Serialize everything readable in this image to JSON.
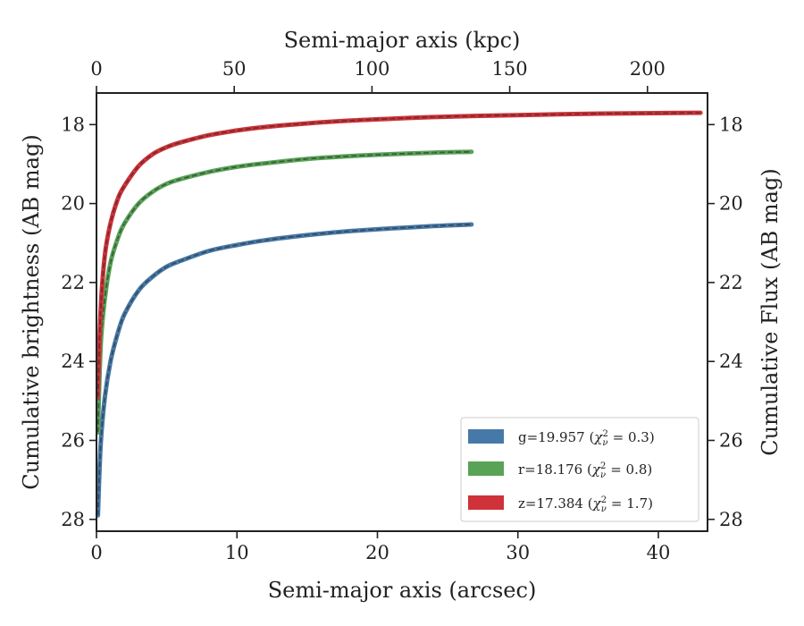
{
  "chart_data": {
    "type": "line",
    "title": "",
    "xlabel": "Semi-major axis (arcsec)",
    "x2label": "Semi-major axis (kpc)",
    "ylabel": "Cumulative brightness (AB mag)",
    "y2label": "Cumulative Flux (AB mag)",
    "xlim": [
      0,
      43.5
    ],
    "x2lim": [
      0,
      221.8
    ],
    "ylim": [
      28.3,
      17.2
    ],
    "y_inverted": true,
    "xticks": [
      0,
      10,
      20,
      30,
      40
    ],
    "xtick_labels": [
      "0",
      "10",
      "20",
      "30",
      "40"
    ],
    "x2ticks": [
      0,
      50,
      100,
      150,
      200
    ],
    "x2tick_labels": [
      "0",
      "50",
      "100",
      "150",
      "200"
    ],
    "yticks": [
      18,
      20,
      22,
      24,
      26,
      28
    ],
    "ytick_labels": [
      "18",
      "20",
      "22",
      "24",
      "26",
      "28"
    ],
    "grid": false,
    "legend_position": "lower-right",
    "series": [
      {
        "name": "g=19.957",
        "chi2": "0.3",
        "color": "#4679a8",
        "x": [
          0.1,
          0.3,
          0.6,
          1.0,
          1.5,
          2.0,
          3.0,
          4.0,
          5.0,
          6.0,
          8.0,
          10.0,
          12.0,
          15.0,
          18.0,
          21.0,
          24.0,
          26.7
        ],
        "y": [
          27.9,
          26.1,
          24.9,
          24.0,
          23.3,
          22.8,
          22.2,
          21.85,
          21.6,
          21.45,
          21.2,
          21.05,
          20.93,
          20.8,
          20.7,
          20.63,
          20.57,
          20.53
        ]
      },
      {
        "name": "r=18.176",
        "chi2": "0.8",
        "color": "#58a356",
        "x": [
          0.1,
          0.3,
          0.6,
          1.0,
          1.5,
          2.0,
          3.0,
          4.0,
          5.0,
          6.0,
          8.0,
          10.0,
          12.0,
          15.0,
          18.0,
          21.0,
          24.0,
          26.7
        ],
        "y": [
          25.8,
          23.6,
          22.4,
          21.5,
          20.9,
          20.5,
          20.0,
          19.7,
          19.5,
          19.38,
          19.2,
          19.07,
          18.98,
          18.87,
          18.8,
          18.75,
          18.71,
          18.69
        ]
      },
      {
        "name": "z=17.384",
        "chi2": "1.7",
        "color": "#cf3238",
        "x": [
          0.1,
          0.3,
          0.6,
          1.0,
          1.5,
          2.0,
          3.0,
          4.0,
          5.0,
          6.0,
          8.0,
          10.0,
          12.0,
          15.0,
          18.0,
          21.0,
          24.0,
          27.0,
          30.0,
          33.0,
          36.0,
          40.0,
          43.0
        ],
        "y": [
          24.9,
          22.7,
          21.3,
          20.5,
          19.9,
          19.55,
          19.05,
          18.75,
          18.57,
          18.45,
          18.27,
          18.15,
          18.06,
          17.97,
          17.9,
          17.85,
          17.81,
          17.78,
          17.76,
          17.74,
          17.72,
          17.71,
          17.7
        ]
      }
    ]
  },
  "legend": {
    "entries": [
      {
        "label": "g=19.957 ",
        "chi_symbol": "χ",
        "sub": "ν",
        "sup": "2",
        "value": " = 0.3)"
      },
      {
        "label": "r=18.176 ",
        "chi_symbol": "χ",
        "sub": "ν",
        "sup": "2",
        "value": " = 0.8)"
      },
      {
        "label": "z=17.384 ",
        "chi_symbol": "χ",
        "sub": "ν",
        "sup": "2",
        "value": " = 1.7)"
      }
    ]
  }
}
